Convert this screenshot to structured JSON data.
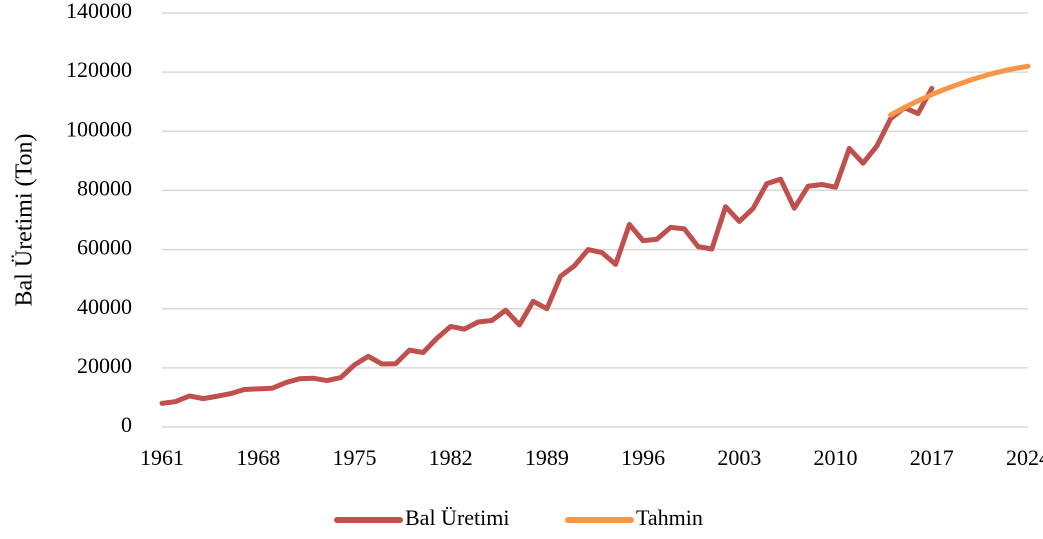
{
  "chart_data": {
    "type": "line",
    "y_label": "Bal Üretimi (Ton)",
    "x": [
      1961,
      1962,
      1963,
      1964,
      1965,
      1966,
      1967,
      1968,
      1969,
      1970,
      1971,
      1972,
      1973,
      1974,
      1975,
      1976,
      1977,
      1978,
      1979,
      1980,
      1981,
      1982,
      1983,
      1984,
      1985,
      1986,
      1987,
      1988,
      1989,
      1990,
      1991,
      1992,
      1993,
      1994,
      1995,
      1996,
      1997,
      1998,
      1999,
      2000,
      2001,
      2002,
      2003,
      2004,
      2005,
      2006,
      2007,
      2008,
      2009,
      2010,
      2011,
      2012,
      2013,
      2014,
      2015,
      2016,
      2017,
      2018,
      2019,
      2020,
      2021,
      2022,
      2023,
      2024
    ],
    "series": [
      {
        "name": "Bal Üretimi",
        "color": "#c0504d",
        "values": [
          8000,
          8600,
          10500,
          9600,
          10400,
          11300,
          12700,
          12900,
          13100,
          15000,
          16300,
          16500,
          15700,
          16700,
          21000,
          23900,
          21300,
          21400,
          26000,
          25200,
          30000,
          34000,
          33100,
          35500,
          36000,
          39500,
          34500,
          42500,
          40000,
          51000,
          54500,
          60000,
          59000,
          55000,
          68500,
          63000,
          63500,
          67500,
          67000,
          61000,
          60200,
          74500,
          69500,
          73900,
          82300,
          83800,
          74000,
          81400,
          82000,
          81100,
          94200,
          89200,
          95000,
          104200,
          108000,
          106000,
          114500,
          null,
          null,
          null,
          null,
          null,
          null,
          null
        ]
      },
      {
        "name": "Tahmin",
        "color": "#f79646",
        "values": [
          null,
          null,
          null,
          null,
          null,
          null,
          null,
          null,
          null,
          null,
          null,
          null,
          null,
          null,
          null,
          null,
          null,
          null,
          null,
          null,
          null,
          null,
          null,
          null,
          null,
          null,
          null,
          null,
          null,
          null,
          null,
          null,
          null,
          null,
          null,
          null,
          null,
          null,
          null,
          null,
          null,
          null,
          null,
          null,
          null,
          null,
          null,
          null,
          null,
          null,
          null,
          null,
          null,
          105500,
          108000,
          110300,
          112400,
          114300,
          116000,
          117600,
          119000,
          120200,
          121200,
          122000
        ]
      }
    ],
    "xlim": [
      1961,
      2024
    ],
    "xticks": [
      1961,
      1968,
      1975,
      1982,
      1989,
      1996,
      2003,
      2010,
      2017,
      2024
    ],
    "ylim": [
      0,
      140000
    ],
    "yticks": [
      0,
      20000,
      40000,
      60000,
      80000,
      100000,
      120000,
      140000
    ],
    "grid": true,
    "legend": "bottom"
  }
}
